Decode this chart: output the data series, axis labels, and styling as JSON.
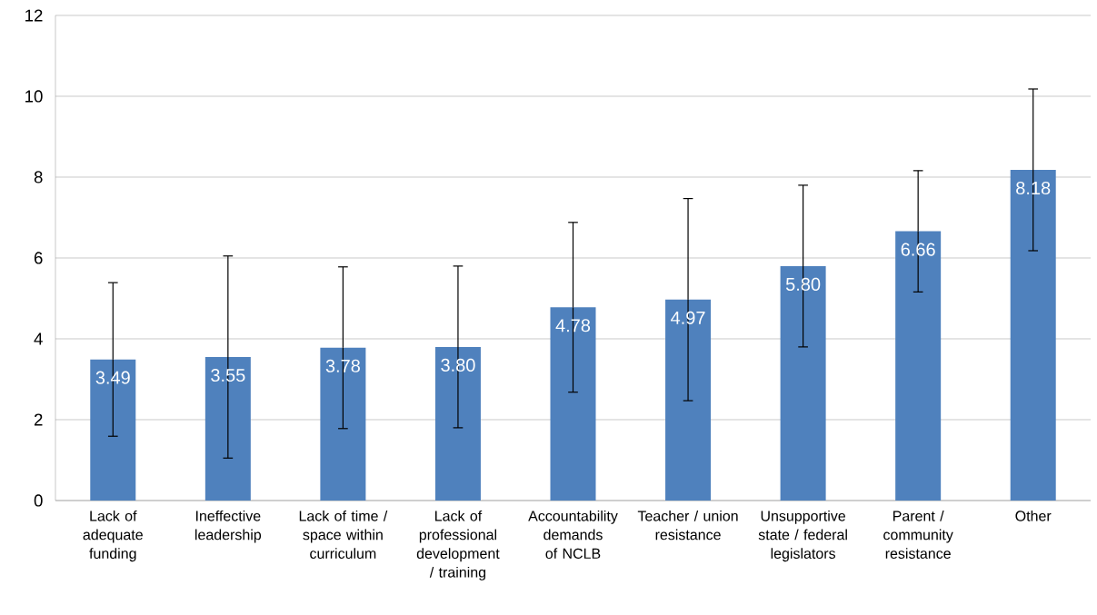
{
  "chart_data": {
    "type": "bar",
    "categories": [
      "Lack of adequate funding",
      "Ineffective leadership",
      "Lack of time / space within curriculum",
      "Lack of professional development / training",
      "Accountability demands of NCLB",
      "Teacher / union resistance",
      "Unsupportive state / federal legislators",
      "Parent / community resistance",
      "Other"
    ],
    "values": [
      3.49,
      3.55,
      3.78,
      3.8,
      4.78,
      4.97,
      5.8,
      6.66,
      8.18
    ],
    "value_labels": [
      "3.49",
      "3.55",
      "3.78",
      "3.80",
      "4.78",
      "4.97",
      "5.80",
      "6.66",
      "8.18"
    ],
    "errors": [
      1.9,
      2.5,
      2.0,
      2.0,
      2.1,
      2.5,
      2.0,
      1.5,
      2.0
    ],
    "color": "#4f81bd",
    "ylim": [
      0,
      12
    ],
    "yticks": [
      0,
      2,
      4,
      6,
      8,
      10,
      12
    ],
    "grid": "y"
  }
}
